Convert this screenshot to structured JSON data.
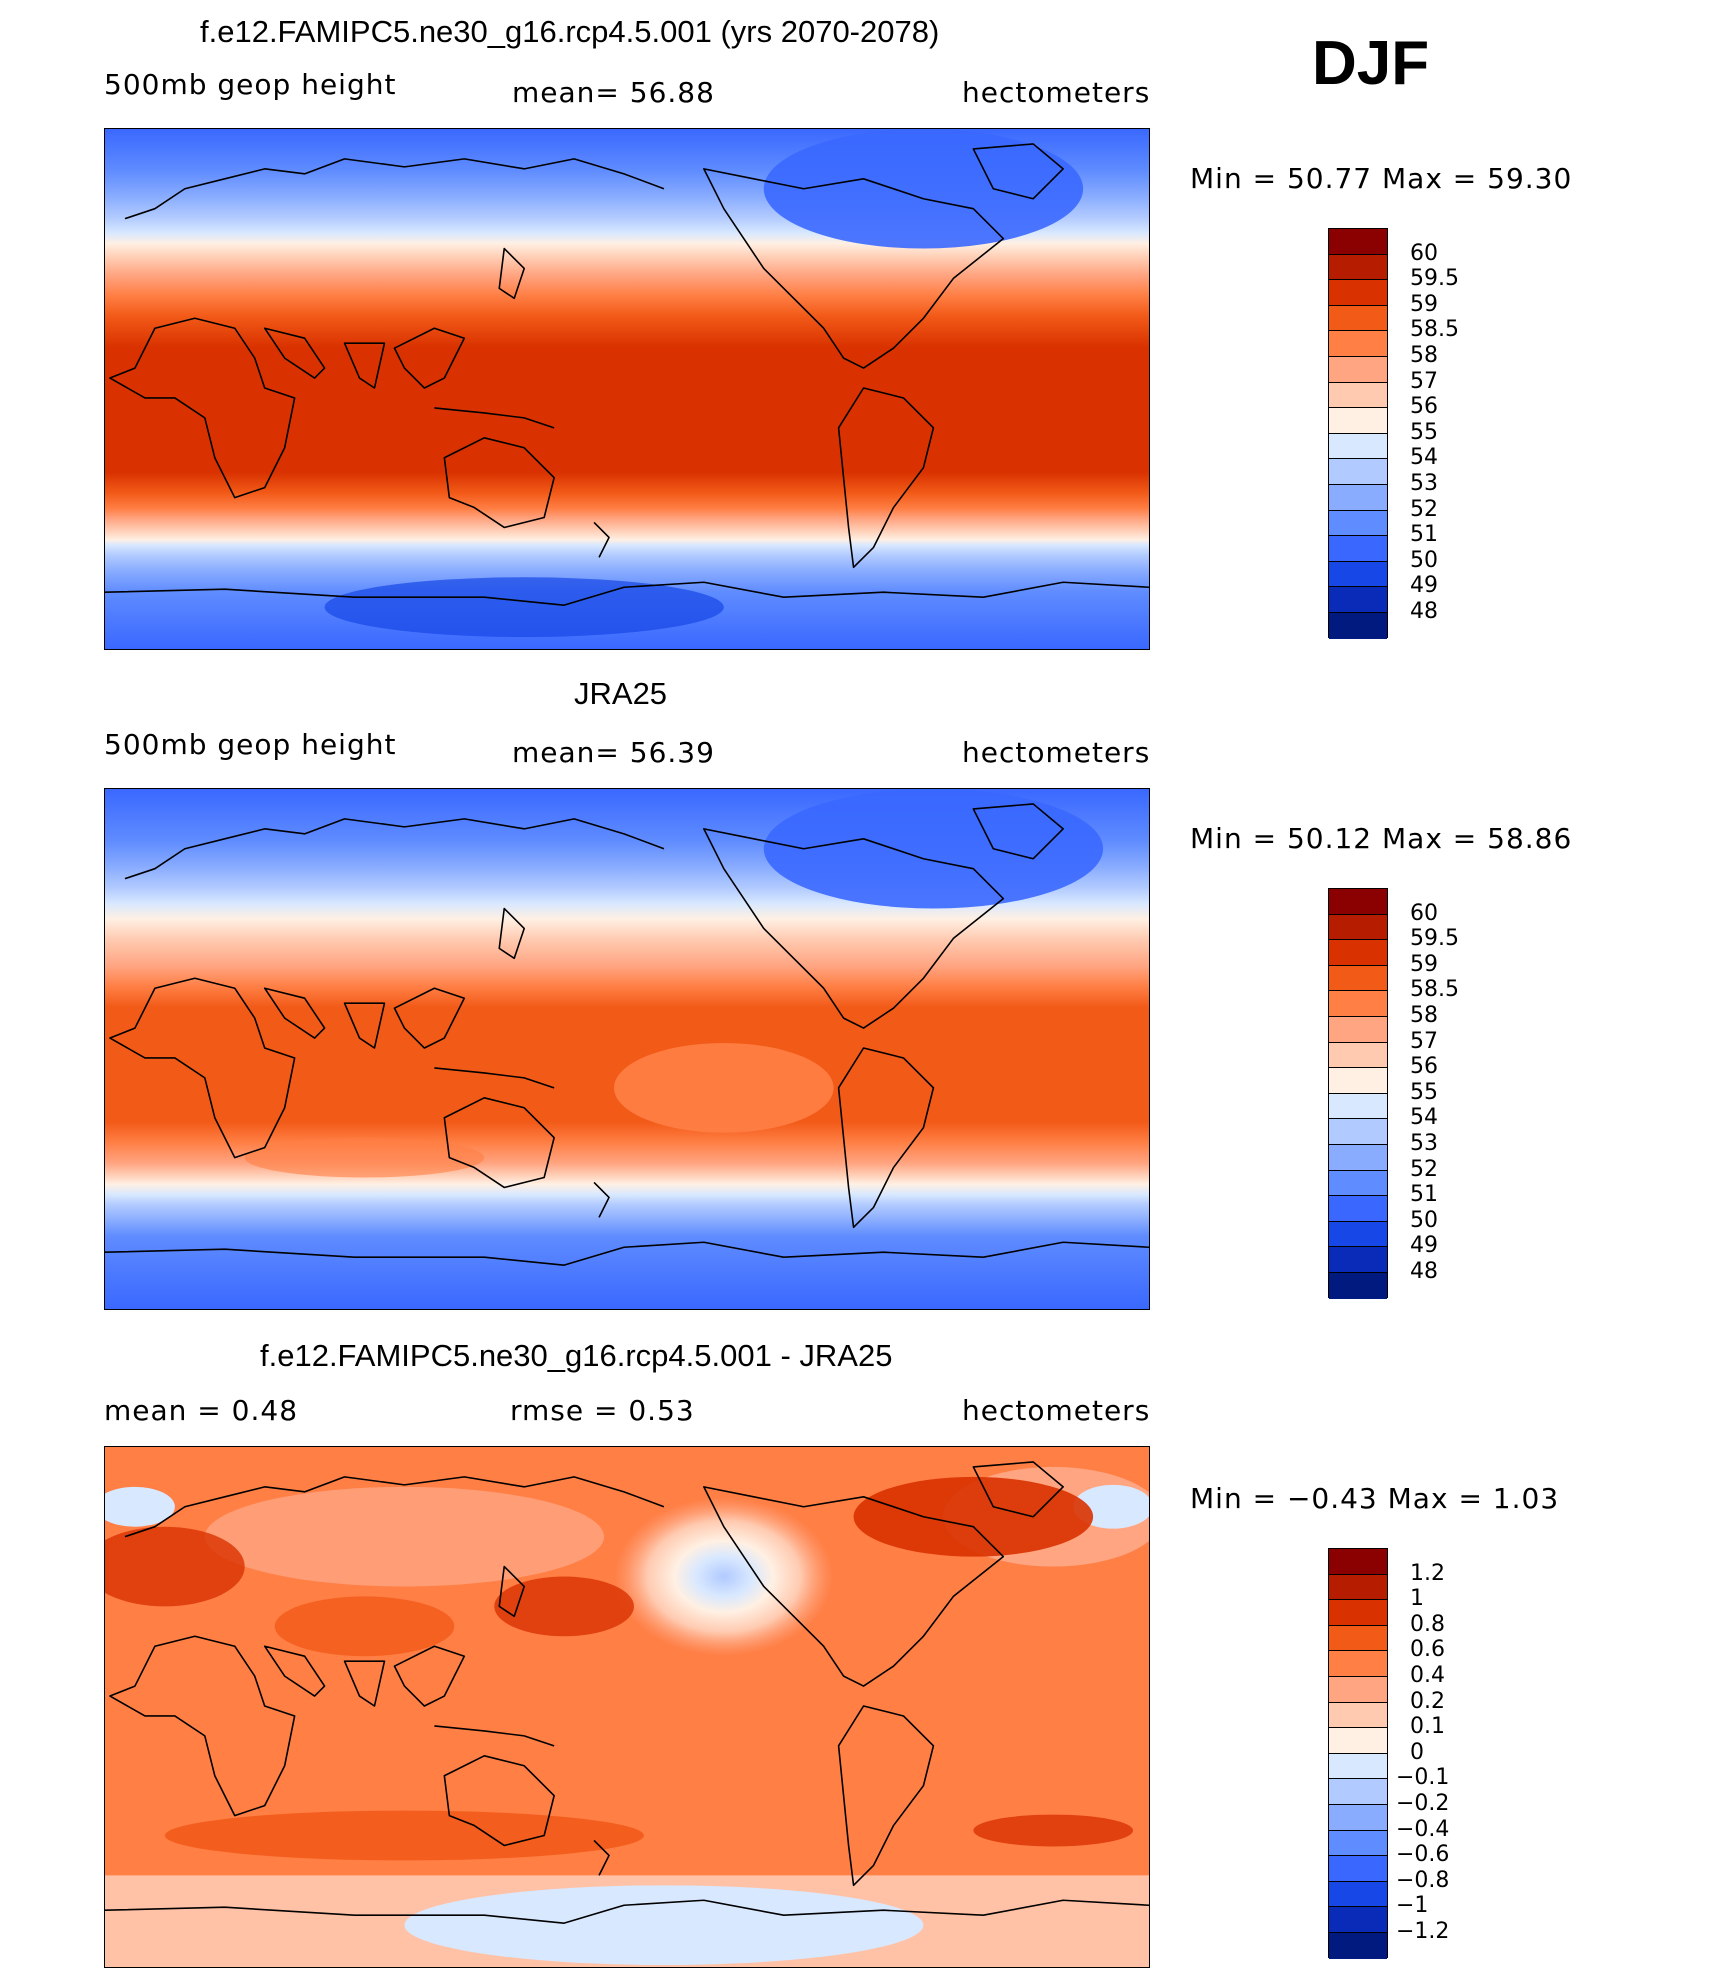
{
  "season": "DJF",
  "panels": [
    {
      "id": "model",
      "title": "f.e12.FAMIPC5.ne30_g16.rcp4.5.001 (yrs 2070-2078)",
      "left_label": "500mb  geop  height",
      "center_label": "mean=   56.88",
      "right_label": "hectometers",
      "minmax": "Min  =    50.77  Max  =    59.30",
      "colorbar_labels": [
        "60",
        "59.5",
        "59",
        "58.5",
        "58",
        "57",
        "56",
        "55",
        "54",
        "53",
        "52",
        "51",
        "50",
        "49",
        "48"
      ],
      "colors": [
        "#8b0000",
        "#b51c00",
        "#d93200",
        "#f25a18",
        "#ff7f45",
        "#ffa582",
        "#ffcab0",
        "#fff0e3",
        "#d8e8ff",
        "#b1caff",
        "#89acff",
        "#5f8cff",
        "#3a68ff",
        "#1747e6",
        "#0a2bb8",
        "#001a80"
      ]
    },
    {
      "id": "obs",
      "title": "JRA25",
      "left_label": "500mb  geop  height",
      "center_label": "mean=   56.39",
      "right_label": "hectometers",
      "minmax": "Min  =    50.12  Max  =    58.86",
      "colorbar_labels": [
        "60",
        "59.5",
        "59",
        "58.5",
        "58",
        "57",
        "56",
        "55",
        "54",
        "53",
        "52",
        "51",
        "50",
        "49",
        "48"
      ],
      "colors": [
        "#8b0000",
        "#b51c00",
        "#d93200",
        "#f25a18",
        "#ff7f45",
        "#ffa582",
        "#ffcab0",
        "#fff0e3",
        "#d8e8ff",
        "#b1caff",
        "#89acff",
        "#5f8cff",
        "#3a68ff",
        "#1747e6",
        "#0a2bb8",
        "#001a80"
      ]
    },
    {
      "id": "diff",
      "title": "f.e12.FAMIPC5.ne30_g16.rcp4.5.001 - JRA25",
      "left_label": "mean  =      0.48",
      "center_label": "rmse  =     0.53",
      "right_label": "hectometers",
      "minmax": "Min  =    −0.43  Max  =      1.03",
      "colorbar_labels": [
        "1.2",
        "1",
        "0.8",
        "0.6",
        "0.4",
        "0.2",
        "0.1",
        "0",
        "−0.1",
        "−0.2",
        "−0.4",
        "−0.6",
        "−0.8",
        "−1",
        "−1.2"
      ],
      "colors": [
        "#8b0000",
        "#b51c00",
        "#d93200",
        "#f25a18",
        "#ff7f45",
        "#ffa582",
        "#ffcab0",
        "#fff0e3",
        "#d8e8ff",
        "#b1caff",
        "#89acff",
        "#5f8cff",
        "#3a68ff",
        "#1747e6",
        "#0a2bb8",
        "#001a80"
      ]
    }
  ]
}
